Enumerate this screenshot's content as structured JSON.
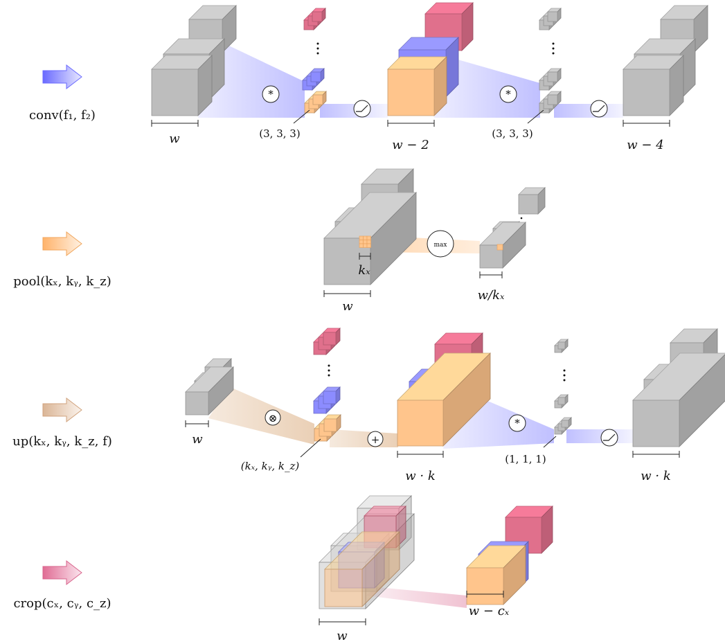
{
  "colors": {
    "gray": "#bdbdbd",
    "orange": "#ffc58c",
    "blue": "#8c8cff",
    "pink": "#e0708c",
    "conv_arrow": "#8c8cff",
    "pool_arrow": "#ffc58c",
    "up_arrow": "#e6c6aa",
    "crop_arrow": "#e69ab4"
  },
  "rows": [
    {
      "id": "conv",
      "op_label": "conv(f₁, f₂)",
      "arrow_color_key": "conv_arrow",
      "input_width": "w",
      "kernel_1": "(3, 3, 3)",
      "mid_width": "w − 2",
      "kernel_2": "(3, 3, 3)",
      "output_width": "w − 4",
      "op_symbol": "*",
      "activation_icon": "relu-icon"
    },
    {
      "id": "pool",
      "op_label": "pool(kₓ, kᵧ, k_z)",
      "arrow_color_key": "pool_arrow",
      "input_width": "w",
      "kernel_size": "kₓ",
      "op_symbol": "max",
      "output_width": "w/kₓ"
    },
    {
      "id": "up",
      "op_label": "up(kₓ, kᵧ, k_z, f)",
      "arrow_color_key": "up_arrow",
      "input_width": "w",
      "kernel_1": "(kₓ, kᵧ, k_z)",
      "op_symbol_1": "⊗",
      "op_symbol_2": "+",
      "mid_width": "w · k",
      "kernel_2": "(1, 1, 1)",
      "op_symbol_3": "*",
      "output_width": "w · k",
      "activation_icon": "relu-icon"
    },
    {
      "id": "crop",
      "op_label": "crop(cₓ, cᵧ, c_z)",
      "arrow_color_key": "crop_arrow",
      "input_width": "w",
      "output_width": "w − cₓ"
    }
  ]
}
